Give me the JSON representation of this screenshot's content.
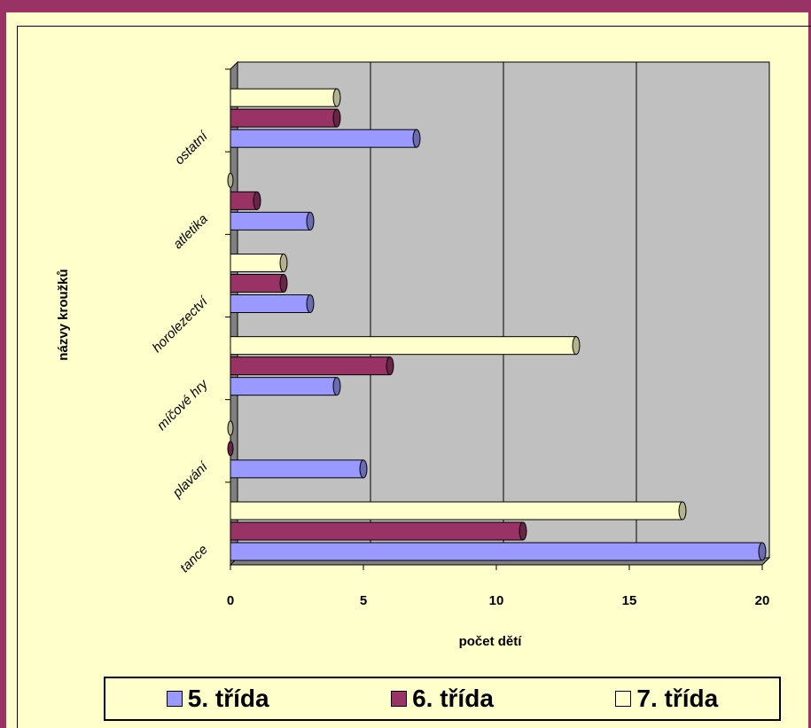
{
  "chart_data": {
    "type": "bar",
    "orientation": "horizontal",
    "title": "",
    "xlabel": "počet dětí",
    "ylabel": "názvy kroužků",
    "categories": [
      "tance",
      "plavání",
      "míčové hry",
      "horolezectví",
      "atletika",
      "ostatní"
    ],
    "series": [
      {
        "name": "5. třída",
        "values": [
          20,
          5,
          4,
          3,
          3,
          7
        ],
        "color": "#9999ff"
      },
      {
        "name": "6. třída",
        "values": [
          11,
          0,
          6,
          2,
          1,
          4
        ],
        "color": "#993366"
      },
      {
        "name": "7. třída",
        "values": [
          17,
          0,
          13,
          2,
          0,
          4
        ],
        "color": "#ffffcc"
      }
    ],
    "xlim": [
      0,
      20
    ],
    "xticks": [
      "0",
      "5",
      "10",
      "15",
      "20"
    ],
    "grid": true,
    "legend_position": "bottom",
    "plot_background": "#c0c0c0",
    "chart_background": "#ffffcc",
    "border_color": "#993366"
  }
}
